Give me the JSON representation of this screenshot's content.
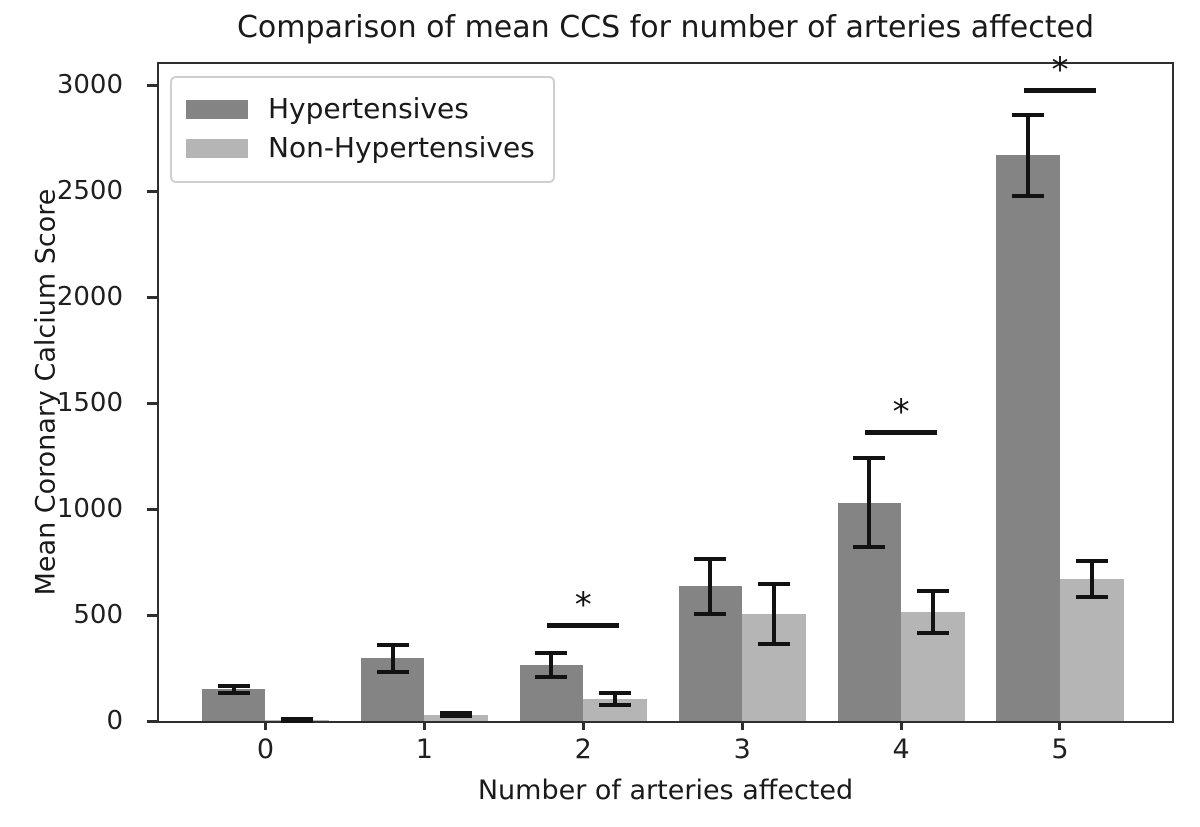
{
  "chart_data": {
    "type": "bar",
    "title": "Comparison of mean CCS for number of arteries affected",
    "xlabel": "Number of arteries affected",
    "ylabel": "Mean Coronary Calcium Score",
    "categories": [
      "0",
      "1",
      "2",
      "3",
      "4",
      "5"
    ],
    "series": [
      {
        "name": "Hypertensives",
        "color": "#848484",
        "values": [
          150,
          295,
          265,
          635,
          1030,
          2670
        ],
        "errors": [
          25,
          75,
          65,
          140,
          220,
          200
        ]
      },
      {
        "name": "Non-Hypertensives",
        "color": "#b5b5b5",
        "values": [
          3,
          30,
          105,
          505,
          515,
          670
        ],
        "errors": [
          3,
          15,
          38,
          150,
          110,
          95
        ]
      }
    ],
    "yticks": [
      0,
      500,
      1000,
      1500,
      2000,
      2500,
      3000
    ],
    "ylim": [
      0,
      3100
    ],
    "xlim": [
      -0.67,
      5.705
    ],
    "bar_width": 0.4,
    "grid": false,
    "legend_position": "upper left",
    "error_bar_color": "#121212",
    "axis_color": "#2e2e2e",
    "significance_markers": [
      {
        "category_index": 2,
        "label": "*",
        "line_y": 450
      },
      {
        "category_index": 4,
        "label": "*",
        "line_y": 1360
      },
      {
        "category_index": 5,
        "label": "*",
        "line_y": 2975
      }
    ]
  }
}
